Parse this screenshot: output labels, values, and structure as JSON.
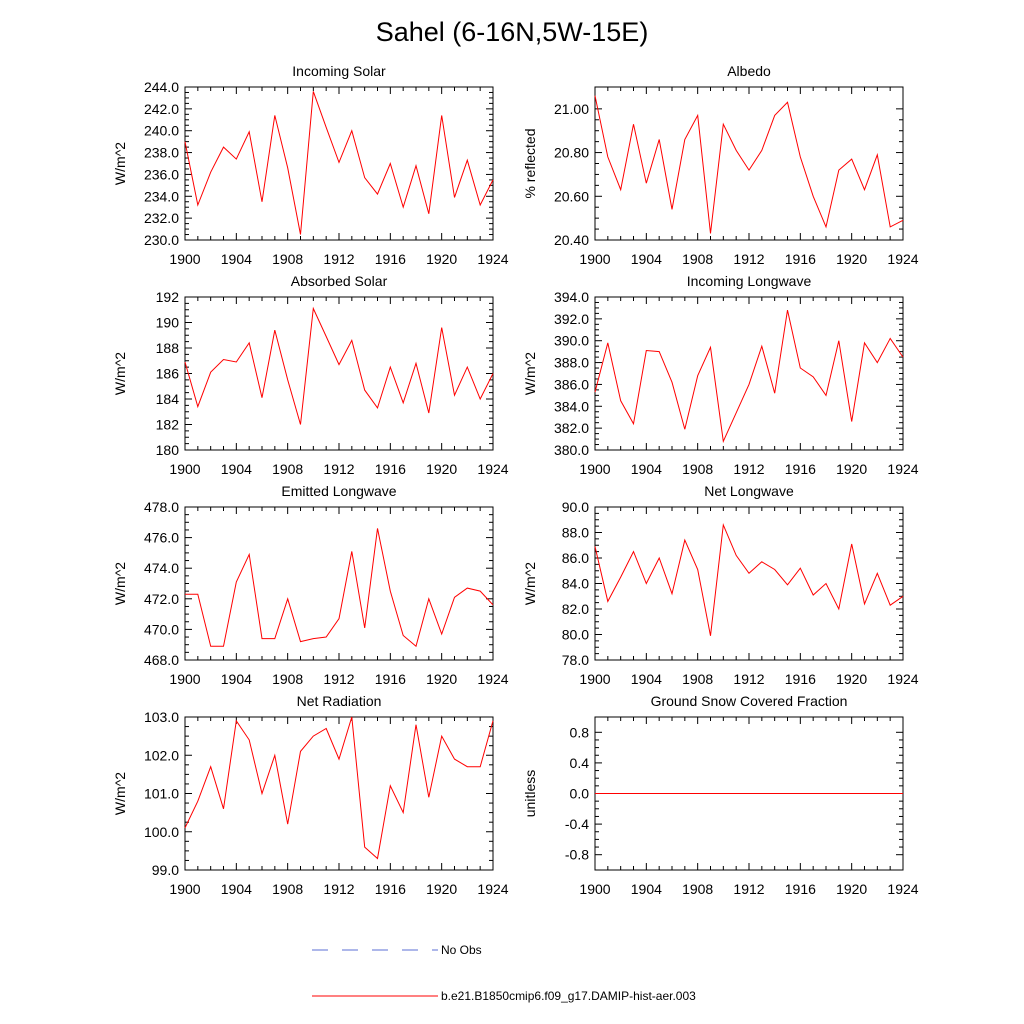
{
  "page": {
    "title": "Sahel (6-16N,5W-15E)",
    "legend": [
      {
        "label": "No Obs",
        "color": "#5b6fd6",
        "style": "dashed"
      },
      {
        "label": "b.e21.B1850cmip6.f09_g17.DAMIP-hist-aer.003",
        "color": "#ff0000",
        "style": "solid"
      }
    ]
  },
  "chart_data": [
    {
      "type": "line",
      "title": "Incoming Solar",
      "ylabel": "W/m^2",
      "xlim": [
        1900,
        1924
      ],
      "ylim": [
        230,
        244
      ],
      "yticks": [
        "230.0",
        "232.0",
        "234.0",
        "236.0",
        "238.0",
        "240.0",
        "242.0",
        "244.0"
      ],
      "xticks": [
        "1900",
        "1904",
        "1908",
        "1912",
        "1916",
        "1920",
        "1924"
      ],
      "x": [
        1900,
        1901,
        1902,
        1903,
        1904,
        1905,
        1906,
        1907,
        1908,
        1909,
        1910,
        1911,
        1912,
        1913,
        1914,
        1915,
        1916,
        1917,
        1918,
        1919,
        1920,
        1921,
        1922,
        1923,
        1924
      ],
      "series": [
        {
          "color": "#ff0000",
          "values": [
            239.0,
            233.2,
            236.2,
            238.5,
            237.4,
            239.9,
            233.5,
            241.4,
            236.6,
            230.5,
            243.6,
            240.3,
            237.1,
            240.0,
            235.7,
            234.2,
            237.0,
            233.0,
            236.8,
            232.4,
            241.4,
            233.9,
            237.3,
            233.2,
            235.5
          ]
        }
      ]
    },
    {
      "type": "line",
      "title": "Albedo",
      "ylabel": "% reflected",
      "xlim": [
        1900,
        1924
      ],
      "ylim": [
        20.4,
        21.1
      ],
      "yticks": [
        "20.40",
        "20.60",
        "20.80",
        "21.00"
      ],
      "xticks": [
        "1900",
        "1904",
        "1908",
        "1912",
        "1916",
        "1920",
        "1924"
      ],
      "x": [
        1900,
        1901,
        1902,
        1903,
        1904,
        1905,
        1906,
        1907,
        1908,
        1909,
        1910,
        1911,
        1912,
        1913,
        1914,
        1915,
        1916,
        1917,
        1918,
        1919,
        1920,
        1921,
        1922,
        1923,
        1924
      ],
      "series": [
        {
          "color": "#ff0000",
          "values": [
            21.06,
            20.78,
            20.63,
            20.93,
            20.66,
            20.86,
            20.54,
            20.86,
            20.97,
            20.43,
            20.93,
            20.81,
            20.72,
            20.81,
            20.97,
            21.03,
            20.78,
            20.6,
            20.46,
            20.72,
            20.77,
            20.63,
            20.79,
            20.46,
            20.49
          ]
        }
      ]
    },
    {
      "type": "line",
      "title": "Absorbed Solar",
      "ylabel": "W/m^2",
      "xlim": [
        1900,
        1924
      ],
      "ylim": [
        180,
        192
      ],
      "yticks": [
        "180",
        "182",
        "184",
        "186",
        "188",
        "190",
        "192"
      ],
      "xticks": [
        "1900",
        "1904",
        "1908",
        "1912",
        "1916",
        "1920",
        "1924"
      ],
      "x": [
        1900,
        1901,
        1902,
        1903,
        1904,
        1905,
        1906,
        1907,
        1908,
        1909,
        1910,
        1911,
        1912,
        1913,
        1914,
        1915,
        1916,
        1917,
        1918,
        1919,
        1920,
        1921,
        1922,
        1923,
        1924
      ],
      "series": [
        {
          "color": "#ff0000",
          "values": [
            186.9,
            183.4,
            186.1,
            187.1,
            186.9,
            188.4,
            184.1,
            189.4,
            185.5,
            182.0,
            191.1,
            188.9,
            186.7,
            188.6,
            184.7,
            183.3,
            186.5,
            183.7,
            186.8,
            182.9,
            189.6,
            184.3,
            186.5,
            184.0,
            186.0
          ]
        }
      ]
    },
    {
      "type": "line",
      "title": "Incoming Longwave",
      "ylabel": "W/m^2",
      "xlim": [
        1900,
        1924
      ],
      "ylim": [
        380,
        394
      ],
      "yticks": [
        "380.0",
        "382.0",
        "384.0",
        "386.0",
        "388.0",
        "390.0",
        "392.0",
        "394.0"
      ],
      "xticks": [
        "1900",
        "1904",
        "1908",
        "1912",
        "1916",
        "1920",
        "1924"
      ],
      "x": [
        1900,
        1901,
        1902,
        1903,
        1904,
        1905,
        1906,
        1907,
        1908,
        1909,
        1910,
        1911,
        1912,
        1913,
        1914,
        1915,
        1916,
        1917,
        1918,
        1919,
        1920,
        1921,
        1922,
        1923,
        1924
      ],
      "series": [
        {
          "color": "#ff0000",
          "values": [
            385.3,
            389.8,
            384.5,
            382.4,
            389.1,
            389.0,
            386.2,
            381.9,
            386.8,
            389.4,
            380.8,
            383.4,
            386.0,
            389.5,
            385.2,
            392.8,
            387.5,
            386.7,
            385.0,
            390.0,
            382.6,
            389.8,
            388.0,
            390.2,
            388.5
          ]
        }
      ]
    },
    {
      "type": "line",
      "title": "Emitted Longwave",
      "ylabel": "W/m^2",
      "xlim": [
        1900,
        1924
      ],
      "ylim": [
        468,
        478
      ],
      "yticks": [
        "468.0",
        "470.0",
        "472.0",
        "474.0",
        "476.0",
        "478.0"
      ],
      "xticks": [
        "1900",
        "1904",
        "1908",
        "1912",
        "1916",
        "1920",
        "1924"
      ],
      "x": [
        1900,
        1901,
        1902,
        1903,
        1904,
        1905,
        1906,
        1907,
        1908,
        1909,
        1910,
        1911,
        1912,
        1913,
        1914,
        1915,
        1916,
        1917,
        1918,
        1919,
        1920,
        1921,
        1922,
        1923,
        1924
      ],
      "series": [
        {
          "color": "#ff0000",
          "values": [
            472.3,
            472.3,
            468.9,
            468.9,
            473.1,
            474.9,
            469.4,
            469.4,
            472.0,
            469.2,
            469.4,
            469.5,
            470.7,
            475.1,
            470.1,
            476.6,
            472.5,
            469.6,
            468.9,
            472.0,
            469.7,
            472.1,
            472.7,
            472.5,
            471.6
          ]
        }
      ]
    },
    {
      "type": "line",
      "title": "Net Longwave",
      "ylabel": "W/m^2",
      "xlim": [
        1900,
        1924
      ],
      "ylim": [
        78,
        90
      ],
      "yticks": [
        "78.0",
        "80.0",
        "82.0",
        "84.0",
        "86.0",
        "88.0",
        "90.0"
      ],
      "xticks": [
        "1900",
        "1904",
        "1908",
        "1912",
        "1916",
        "1920",
        "1924"
      ],
      "x": [
        1900,
        1901,
        1902,
        1903,
        1904,
        1905,
        1906,
        1907,
        1908,
        1909,
        1910,
        1911,
        1912,
        1913,
        1914,
        1915,
        1916,
        1917,
        1918,
        1919,
        1920,
        1921,
        1922,
        1923,
        1924
      ],
      "series": [
        {
          "color": "#ff0000",
          "values": [
            86.9,
            82.6,
            84.5,
            86.5,
            84.0,
            86.0,
            83.2,
            87.4,
            85.1,
            79.9,
            88.6,
            86.2,
            84.8,
            85.7,
            85.1,
            83.9,
            85.2,
            83.1,
            84.0,
            82.0,
            87.1,
            82.4,
            84.8,
            82.3,
            83.0
          ]
        }
      ]
    },
    {
      "type": "line",
      "title": "Net Radiation",
      "ylabel": "W/m^2",
      "xlim": [
        1900,
        1924
      ],
      "ylim": [
        99,
        103
      ],
      "yticks": [
        "99.0",
        "100.0",
        "101.0",
        "102.0",
        "103.0"
      ],
      "xticks": [
        "1900",
        "1904",
        "1908",
        "1912",
        "1916",
        "1920",
        "1924"
      ],
      "x": [
        1900,
        1901,
        1902,
        1903,
        1904,
        1905,
        1906,
        1907,
        1908,
        1909,
        1910,
        1911,
        1912,
        1913,
        1914,
        1915,
        1916,
        1917,
        1918,
        1919,
        1920,
        1921,
        1922,
        1923,
        1924
      ],
      "series": [
        {
          "color": "#ff0000",
          "values": [
            100.1,
            100.8,
            101.7,
            100.6,
            102.9,
            102.4,
            101.0,
            102.0,
            100.2,
            102.1,
            102.5,
            102.7,
            101.9,
            103.0,
            99.6,
            99.3,
            101.2,
            100.5,
            102.8,
            100.9,
            102.5,
            101.9,
            101.7,
            101.7,
            102.9
          ]
        }
      ]
    },
    {
      "type": "line",
      "title": "Ground Snow Covered Fraction",
      "ylabel": "unitless",
      "xlim": [
        1900,
        1924
      ],
      "ylim": [
        -1,
        1
      ],
      "yticks": [
        "-0.8",
        "-0.4",
        "0.0",
        "0.4",
        "0.8"
      ],
      "ytickvals": [
        -0.8,
        -0.4,
        0.0,
        0.4,
        0.8
      ],
      "xticks": [
        "1900",
        "1904",
        "1908",
        "1912",
        "1916",
        "1920",
        "1924"
      ],
      "x": [
        1900,
        1901,
        1902,
        1903,
        1904,
        1905,
        1906,
        1907,
        1908,
        1909,
        1910,
        1911,
        1912,
        1913,
        1914,
        1915,
        1916,
        1917,
        1918,
        1919,
        1920,
        1921,
        1922,
        1923,
        1924
      ],
      "series": [
        {
          "color": "#ff0000",
          "values": [
            0,
            0,
            0,
            0,
            0,
            0,
            0,
            0,
            0,
            0,
            0,
            0,
            0,
            0,
            0,
            0,
            0,
            0,
            0,
            0,
            0,
            0,
            0,
            0,
            0
          ]
        }
      ]
    }
  ]
}
